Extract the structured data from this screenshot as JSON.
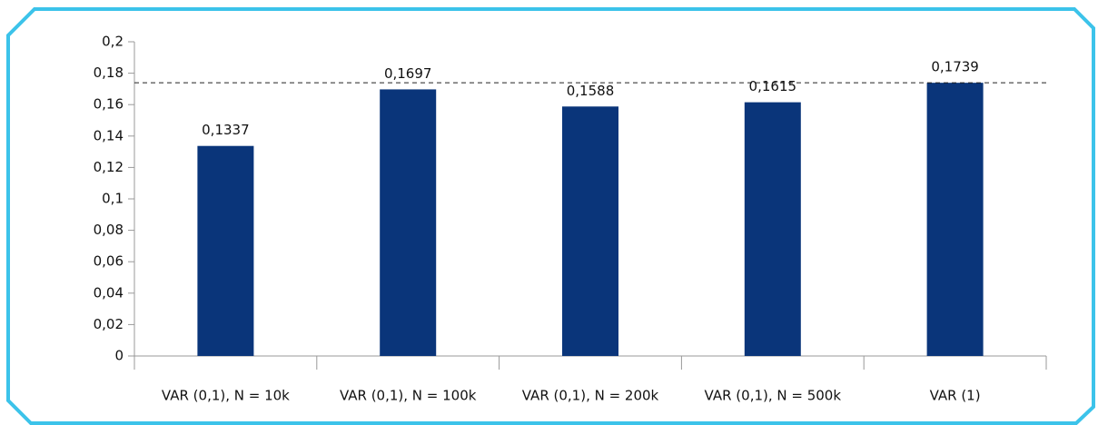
{
  "chart_data": {
    "type": "bar",
    "categories": [
      "VAR (0,1), N = 10k",
      "VAR (0,1), N = 100k",
      "VAR (0,1), N = 200k",
      "VAR (0,1), N = 500k",
      "VAR (1)"
    ],
    "values": [
      0.1337,
      0.1697,
      0.1588,
      0.1615,
      0.1739
    ],
    "value_labels": [
      "0,1337",
      "0,1697",
      "0,1588",
      "0,1615",
      "0,1739"
    ],
    "color": "#0a357a",
    "reference_line": 0.1739,
    "ylim": [
      0,
      0.2
    ],
    "yticks": [
      0,
      {
        "value": 0.02,
        "label": "0,02"
      },
      {
        "value": 0.04,
        "label": "0,04"
      },
      {
        "value": 0.06,
        "label": "0,06"
      },
      {
        "value": 0.08,
        "label": "0,08"
      },
      {
        "value": 0.1,
        "label": "0,1"
      },
      {
        "value": 0.12,
        "label": "0,12"
      },
      {
        "value": 0.14,
        "label": "0,14"
      },
      {
        "value": 0.16,
        "label": "0,16"
      },
      {
        "value": 0.18,
        "label": "0,18"
      },
      {
        "value": 0.2,
        "label": "0,2"
      }
    ],
    "grid": false
  }
}
